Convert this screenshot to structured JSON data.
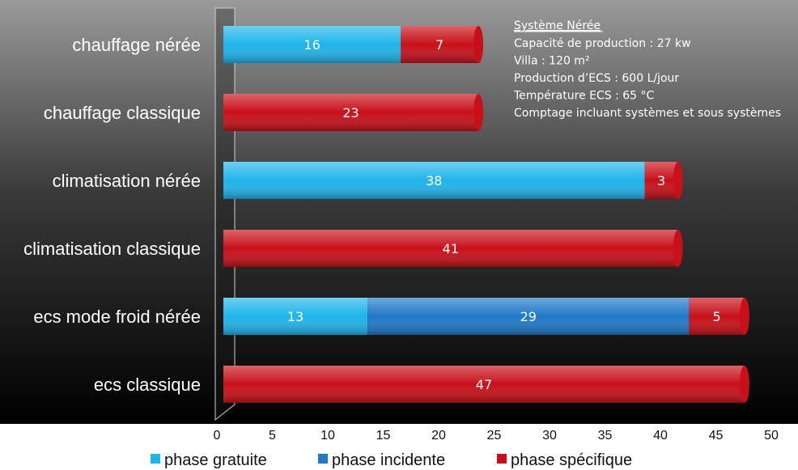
{
  "chart_data": {
    "type": "bar",
    "orientation": "horizontal",
    "stacked": true,
    "categories": [
      "chauffage nérée",
      "chauffage classique",
      "climatisation nérée",
      "climatisation classique",
      "ecs mode froid nérée",
      "ecs classique"
    ],
    "series": [
      {
        "name": "phase gratuite",
        "color": "#1fb4ea",
        "values": [
          16,
          0,
          38,
          0,
          13,
          0
        ]
      },
      {
        "name": "phase incidente",
        "color": "#1f78c8",
        "values": [
          0,
          0,
          0,
          0,
          29,
          0
        ]
      },
      {
        "name": "phase spécifique",
        "color": "#c8101a",
        "values": [
          7,
          23,
          3,
          41,
          5,
          47
        ]
      }
    ],
    "xlim": [
      0,
      50
    ],
    "xticks": [
      0,
      5,
      10,
      15,
      20,
      25,
      30,
      35,
      40,
      45,
      50
    ],
    "legend_position": "bottom",
    "grid": false,
    "annotation": {
      "title": "Système Nérée",
      "lines": [
        "Capacité de production : 27 kw",
        "Villa : 120 m²",
        "Production d’ECS : 600 L/jour",
        "Température ECS : 65 °C",
        "Comptage incluant systèmes et sous systèmes"
      ]
    }
  }
}
